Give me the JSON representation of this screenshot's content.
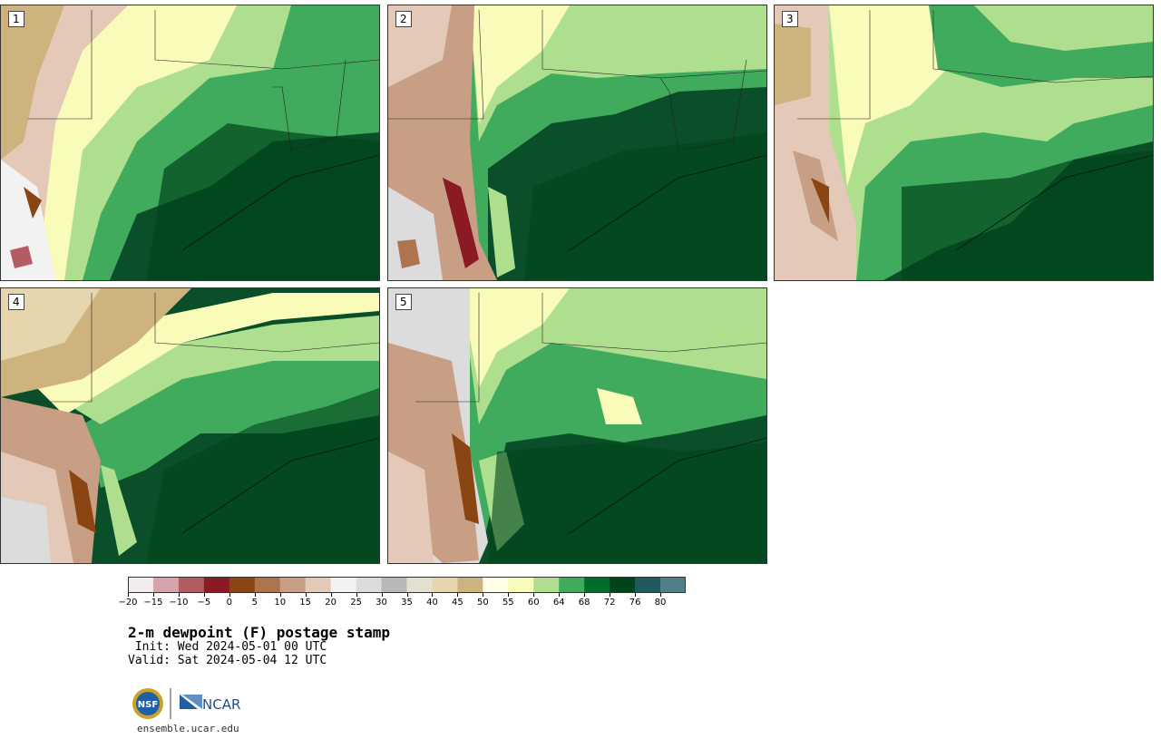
{
  "panels": [
    {
      "label": "1"
    },
    {
      "label": "2"
    },
    {
      "label": "3"
    },
    {
      "label": "4"
    },
    {
      "label": "5"
    }
  ],
  "colorbar": {
    "ticks": [
      "−20",
      "−15",
      "−10",
      "−5",
      "0",
      "5",
      "10",
      "15",
      "20",
      "25",
      "30",
      "35",
      "40",
      "45",
      "50",
      "55",
      "60",
      "64",
      "68",
      "72",
      "76",
      "80"
    ],
    "colors": [
      "#f3ecec",
      "#d6a4a9",
      "#b45c64",
      "#8c1a24",
      "#8b4513",
      "#ae7450",
      "#c89e85",
      "#e4c9b8",
      "#f2f2f2",
      "#dcdcdc",
      "#b8b8b8",
      "#e4e0d0",
      "#e5d6ad",
      "#cfb37e",
      "#fefee6",
      "#f9fbb8",
      "#addf8e",
      "#41ab5d",
      "#006d2c",
      "#00441b",
      "#1f5a5e",
      "#4f7f88"
    ]
  },
  "title": "2-m dewpoint (F) postage stamp",
  "init": " Init: Wed 2024-05-01 00 UTC",
  "valid": "Valid: Sat 2024-05-04 12 UTC",
  "logo": {
    "nsf": "NSF",
    "ncar": "NCAR"
  },
  "site": "ensemble.ucar.edu"
}
